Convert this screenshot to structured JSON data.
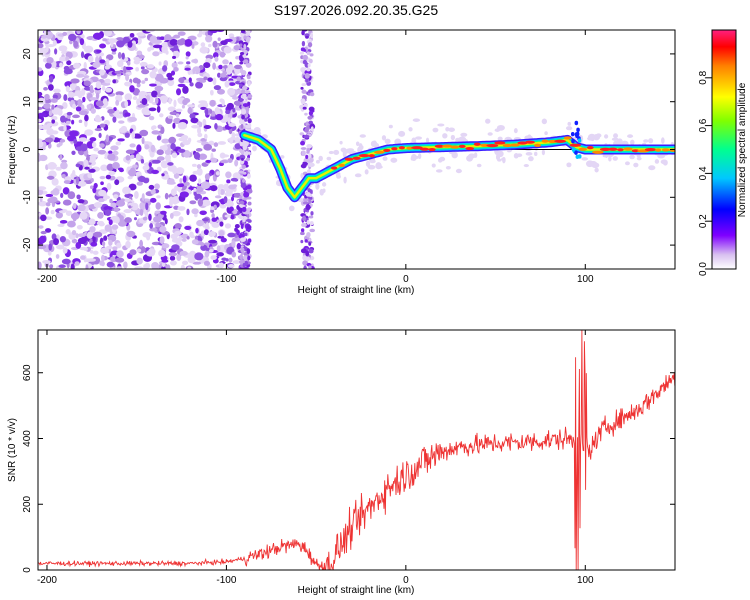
{
  "title": "S197.2026.092.20.35.G25",
  "chart_data": [
    {
      "type": "heatmap",
      "name": "spectrogram",
      "xlabel": "Height of straight line (km)",
      "ylabel": "Frequency (Hz)",
      "xlim": [
        -205,
        150
      ],
      "ylim": [
        -25,
        25
      ],
      "xticks": [
        -200,
        -100,
        0,
        100
      ],
      "yticks": [
        -20,
        -10,
        0,
        10,
        20
      ],
      "ridge": [
        [
          -90,
          3
        ],
        [
          -82,
          2
        ],
        [
          -75,
          0
        ],
        [
          -70,
          -4
        ],
        [
          -66,
          -8
        ],
        [
          -62,
          -10
        ],
        [
          -58,
          -8
        ],
        [
          -54,
          -6
        ],
        [
          -50,
          -6
        ],
        [
          -45,
          -5
        ],
        [
          -40,
          -4
        ],
        [
          -30,
          -2
        ],
        [
          -20,
          -1
        ],
        [
          -10,
          0
        ],
        [
          0,
          0.3
        ],
        [
          20,
          0.5
        ],
        [
          40,
          0.7
        ],
        [
          60,
          1
        ],
        [
          80,
          1.5
        ],
        [
          90,
          2
        ],
        [
          95,
          0.5
        ],
        [
          100,
          0
        ],
        [
          120,
          0
        ],
        [
          150,
          0
        ]
      ],
      "colorbar": {
        "label": "Normalized spectral amplitude",
        "ticks": [
          0.0,
          0.2,
          0.4,
          0.6,
          0.8
        ],
        "range": [
          0,
          1
        ]
      }
    },
    {
      "type": "line",
      "name": "snr",
      "xlabel": "Height of straight line (km)",
      "ylabel": "SNR (10 * v/v)",
      "xlim": [
        -205,
        150
      ],
      "ylim": [
        0,
        730
      ],
      "xticks": [
        -200,
        -100,
        0,
        100
      ],
      "yticks": [
        0,
        200,
        400,
        600
      ],
      "color": "#ee3333",
      "trend": [
        [
          -205,
          20
        ],
        [
          -120,
          20
        ],
        [
          -100,
          25
        ],
        [
          -90,
          35
        ],
        [
          -80,
          50
        ],
        [
          -70,
          70
        ],
        [
          -60,
          80
        ],
        [
          -55,
          60
        ],
        [
          -50,
          15
        ],
        [
          -42,
          10
        ],
        [
          -38,
          60
        ],
        [
          -30,
          130
        ],
        [
          -20,
          190
        ],
        [
          -10,
          250
        ],
        [
          0,
          290
        ],
        [
          10,
          330
        ],
        [
          20,
          360
        ],
        [
          30,
          375
        ],
        [
          50,
          385
        ],
        [
          70,
          390
        ],
        [
          90,
          400
        ],
        [
          98,
          380
        ],
        [
          102,
          360
        ],
        [
          110,
          430
        ],
        [
          130,
          490
        ],
        [
          150,
          590
        ]
      ]
    }
  ]
}
